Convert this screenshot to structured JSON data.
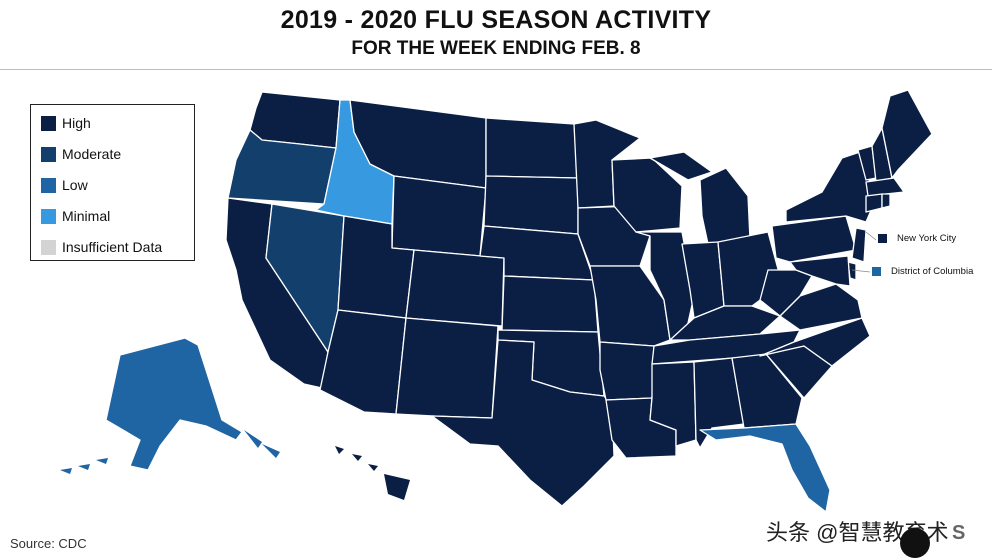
{
  "title": "2019 - 2020 FLU SEASON ACTIVITY",
  "subtitle": "FOR THE WEEK ENDING FEB. 8",
  "legend": [
    {
      "label": "High",
      "color": "#0b1f45"
    },
    {
      "label": "Moderate",
      "color": "#123f6c"
    },
    {
      "label": "Low",
      "color": "#1f64a3"
    },
    {
      "label": "Minimal",
      "color": "#3799df"
    },
    {
      "label": "Insufficient Data",
      "color": "#d3d3d3"
    }
  ],
  "callouts": [
    {
      "label": "New York City",
      "level": "High",
      "color": "#0b1f45"
    },
    {
      "label": "District of Columbia",
      "level": "Low",
      "color": "#1f64a3"
    }
  ],
  "states": {
    "WA": "High",
    "OR": "Moderate",
    "ID": "Minimal",
    "NV": "Moderate",
    "CA": "High",
    "MT": "High",
    "WY": "High",
    "UT": "High",
    "AZ": "High",
    "CO": "High",
    "NM": "High",
    "ND": "High",
    "SD": "High",
    "NE": "High",
    "KS": "High",
    "OK": "High",
    "TX": "High",
    "MN": "High",
    "IA": "High",
    "MO": "High",
    "AR": "High",
    "LA": "High",
    "WI": "High",
    "IL": "High",
    "MI": "High",
    "IN": "High",
    "OH": "High",
    "KY": "High",
    "TN": "High",
    "MS": "High",
    "AL": "High",
    "GA": "High",
    "FL": "Low",
    "SC": "High",
    "NC": "High",
    "VA": "High",
    "WV": "High",
    "PA": "High",
    "NY": "High",
    "VT": "High",
    "NH": "High",
    "ME": "High",
    "MA": "High",
    "RI": "High",
    "CT": "High",
    "NJ": "High",
    "DE": "High",
    "MD": "High",
    "AK": "Low",
    "HI": "High"
  },
  "source": "Source: CDC",
  "watermark": "头条 @智慧教育术",
  "watermark_tail": "S"
}
